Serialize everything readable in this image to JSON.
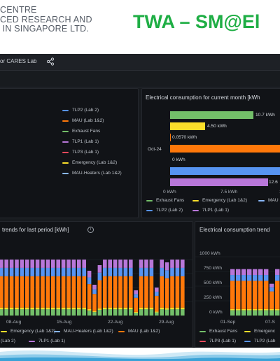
{
  "header": {
    "org_lines": [
      "CENTRE",
      "CED RESEARCH AND",
      " IN SINGAPORE LTD."
    ],
    "title": "TWA – SM@El"
  },
  "dashboard": {
    "title": "or CARES Lab",
    "share_icon": "share-icon",
    "panel_top_left": {
      "legend": [
        {
          "label": "7LP2 (Lab 2)",
          "color": "#5794f2"
        },
        {
          "label": "MAU (Lab 1&2)",
          "color": "#ff780a"
        },
        {
          "label": "Exhaust Fans",
          "color": "#73bf69"
        },
        {
          "label": "7LP1 (Lab 1)",
          "color": "#b877d9"
        },
        {
          "label": "7LP3 (Lab 1)",
          "color": "#f2495c"
        },
        {
          "label": "Emergency (Lab 1&2)",
          "color": "#fade2a"
        },
        {
          "label": "MAU-Heaters (Lab 1&2)",
          "color": "#8ab8ff"
        }
      ]
    },
    "panel_top_right": {
      "title": "Electrical consumption for current month [kWh",
      "legend_row1": [
        {
          "label": "Exhaust Fans",
          "color": "#73bf69"
        },
        {
          "label": "Emergency (Lab 1&2)",
          "color": "#fade2a"
        },
        {
          "label": "MAU",
          "color": "#8ab8ff"
        }
      ],
      "legend_row2": [
        {
          "label": "7LP2 (Lab 2)",
          "color": "#5794f2"
        },
        {
          "label": "7LP1 (Lab 1)",
          "color": "#b877d9"
        }
      ]
    },
    "panel_bottom_left": {
      "title": "trends for last period [kWh]",
      "legend_row1": [
        {
          "label": "Emergency (Lab 1&2)",
          "color": "#fade2a"
        },
        {
          "label": "MAU-Heaters (Lab 1&2)",
          "color": "#8ab8ff"
        },
        {
          "label": "MAU (Lab 1&2)",
          "color": "#ff780a"
        }
      ],
      "legend_row2": [
        {
          "label": "(Lab 2)",
          "color": "#5794f2"
        },
        {
          "label": "7LP1 (Lab 1)",
          "color": "#b877d9"
        }
      ]
    },
    "panel_bottom_right": {
      "title": "Electrical consumption trend",
      "legend_row1": [
        {
          "label": "Exhaust Fans",
          "color": "#73bf69"
        },
        {
          "label": "Emergenc",
          "color": "#fade2a"
        }
      ],
      "legend_row2": [
        {
          "label": "7LP3 (Lab 1)",
          "color": "#f2495c"
        },
        {
          "label": "7LP2 (Lab",
          "color": "#5794f2"
        }
      ]
    }
  },
  "chart_data": [
    {
      "type": "bar",
      "orientation": "horizontal",
      "title": "Electrical consumption for current month [kWh",
      "categories": [
        "Oct-24"
      ],
      "series": [
        {
          "name": "Exhaust Fans",
          "value": 10.7,
          "label": "10.7 kWh",
          "color": "#73bf69"
        },
        {
          "name": "Emergency (Lab 1&2)",
          "value": 4.5,
          "label": "4.50 kWh",
          "color": "#fade2a"
        },
        {
          "name": "",
          "value": 0.057,
          "label": "0.0570 kWh",
          "color": "#ff780a"
        },
        {
          "name": "",
          "value": 15.5,
          "label": "",
          "color": "#ff780a"
        },
        {
          "name": "",
          "value": 0,
          "label": "0 kWh",
          "color": "#f2495c"
        },
        {
          "name": "7LP2 (Lab 2)",
          "value": 15.5,
          "label": "",
          "color": "#5794f2"
        },
        {
          "name": "7LP1 (Lab 1)",
          "value": 12.6,
          "label": "12.6",
          "color": "#b877d9"
        }
      ],
      "x_ticks": [
        "0 kWh",
        "7.5 kWh",
        "1"
      ],
      "xlim": [
        0,
        15
      ]
    },
    {
      "type": "bar",
      "stacked": true,
      "title": "trends for last period [kWh]",
      "x_ticks": [
        "08-Aug",
        "15-Aug",
        "22-Aug",
        "29-Aug"
      ],
      "layers": [
        "Exhaust Fans",
        "Emergency (Lab 1&2)",
        "MAU (Lab 1&2)",
        "7LP2 (Lab 2)",
        "7LP1 (Lab 1)"
      ],
      "colors": [
        "#73bf69",
        "#fade2a",
        "#ff780a",
        "#5794f2",
        "#b877d9"
      ],
      "bars": [
        [
          30,
          8,
          150,
          40,
          40
        ],
        [
          30,
          8,
          150,
          40,
          40
        ],
        [
          30,
          8,
          150,
          40,
          40
        ],
        [
          30,
          8,
          150,
          40,
          40
        ],
        [
          30,
          8,
          150,
          40,
          40
        ],
        [
          30,
          8,
          150,
          40,
          40
        ],
        [
          30,
          8,
          150,
          40,
          40
        ],
        [
          30,
          8,
          150,
          40,
          40
        ],
        [
          30,
          8,
          150,
          40,
          40
        ],
        [
          30,
          8,
          150,
          40,
          40
        ],
        [
          30,
          8,
          150,
          40,
          40
        ],
        [
          30,
          8,
          150,
          40,
          40
        ],
        [
          30,
          8,
          150,
          40,
          40
        ],
        [
          30,
          8,
          150,
          40,
          40
        ],
        [
          30,
          8,
          150,
          40,
          40
        ],
        [
          30,
          8,
          150,
          40,
          40
        ],
        [
          30,
          8,
          150,
          40,
          40
        ],
        [
          30,
          8,
          150,
          40,
          40
        ],
        [
          30,
          8,
          150,
          40,
          40
        ],
        [
          30,
          8,
          150,
          40,
          40
        ],
        [
          30,
          8,
          150,
          40,
          40
        ],
        [
          30,
          8,
          150,
          40,
          40
        ],
        [
          30,
          8,
          150,
          40,
          40
        ],
        [
          30,
          8,
          150,
          40,
          40
        ],
        [
          30,
          8,
          150,
          40,
          40
        ],
        [
          30,
          8,
          150,
          40,
          40
        ],
        [
          30,
          8,
          150,
          40,
          40
        ],
        [
          30,
          8,
          150,
          40,
          40
        ],
        [
          30,
          8,
          150,
          40,
          40
        ],
        [
          30,
          8,
          150,
          40,
          40
        ],
        [
          30,
          8,
          150,
          40,
          40
        ],
        [
          30,
          8,
          150,
          40,
          40
        ],
        [
          30,
          8,
          150,
          40,
          40
        ],
        [
          30,
          8,
          150,
          40,
          40
        ],
        [
          30,
          8,
          150,
          40,
          40
        ],
        [
          30,
          8,
          150,
          40,
          40
        ]
      ],
      "scales": [
        1,
        1,
        1,
        1,
        1,
        1,
        1,
        1,
        1,
        1,
        1,
        1,
        1,
        1,
        1,
        1,
        1,
        0.8,
        0.55,
        0.9,
        1,
        1,
        1,
        1,
        1,
        1,
        0.45,
        1,
        1,
        1,
        0.5,
        1,
        0.95,
        1,
        1,
        1
      ]
    },
    {
      "type": "bar",
      "stacked": true,
      "title": "Electrical consumption trend",
      "y_ticks": [
        "0 kWh",
        "250 kWh",
        "500 kWh",
        "750 kWh",
        "1000 kWh"
      ],
      "ylim": [
        0,
        1000
      ],
      "x_ticks": [
        "01-Sep",
        "07-S"
      ],
      "layers": [
        "Exhaust Fans",
        "Emergency (Lab 1&2)",
        "MAU (Lab 1&2)",
        "7LP2 (Lab 2)",
        "7LP1 (Lab 1)"
      ],
      "colors": [
        "#73bf69",
        "#fade2a",
        "#ff780a",
        "#5794f2",
        "#b877d9"
      ],
      "bars": [
        [
          90,
          20,
          480,
          100,
          100
        ],
        [
          90,
          20,
          480,
          100,
          100
        ],
        [
          90,
          20,
          480,
          100,
          100
        ],
        [
          90,
          20,
          480,
          100,
          100
        ],
        [
          90,
          20,
          480,
          100,
          100
        ],
        [
          90,
          20,
          480,
          100,
          100
        ],
        [
          90,
          20,
          480,
          100,
          100
        ],
        [
          90,
          20,
          300,
          70,
          60
        ],
        [
          90,
          20,
          480,
          100,
          100
        ],
        [
          90,
          20,
          480,
          100,
          100
        ]
      ]
    }
  ]
}
